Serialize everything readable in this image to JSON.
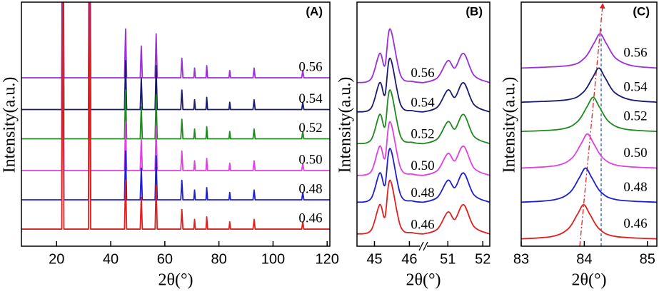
{
  "chart_data": [
    {
      "type": "line",
      "panel_label": "(A)",
      "x_label": "2θ(°)",
      "y_label": "Intensity(a.u.)",
      "xlim": [
        7,
        121
      ],
      "xticks": [
        20,
        40,
        60,
        80,
        100,
        120
      ],
      "ylim": [
        0,
        100
      ],
      "x": [
        7,
        21.9,
        22.3,
        22.7,
        31.8,
        32.2,
        32.6,
        45.1,
        45.5,
        45.9,
        50.9,
        51.3,
        51.7,
        56.4,
        56.8,
        57.2,
        65.9,
        66.3,
        66.7,
        70.7,
        71,
        71.3,
        75.2,
        75.5,
        75.8,
        83.7,
        84,
        84.3,
        92.6,
        93,
        93.4,
        110.6,
        111,
        111.4,
        121
      ],
      "series": [
        {
          "name": "0.56",
          "color": "#9b30d9",
          "values": [
            69,
            69,
            179,
            69,
            69,
            179,
            69,
            69,
            89,
            69,
            69,
            82,
            69,
            69,
            87,
            69,
            69,
            77,
            69,
            69,
            73,
            69,
            69,
            74,
            69,
            69,
            72,
            69,
            69,
            73,
            69,
            69,
            72,
            69,
            69
          ]
        },
        {
          "name": "0.54",
          "color": "#1a1a6e",
          "values": [
            56,
            56,
            166,
            56,
            56,
            166,
            56,
            56,
            76,
            56,
            56,
            69,
            56,
            56,
            74,
            56,
            56,
            64,
            56,
            56,
            60,
            56,
            56,
            61,
            56,
            56,
            59,
            56,
            56,
            60,
            56,
            56,
            59,
            56,
            56
          ]
        },
        {
          "name": "0.52",
          "color": "#1f8a1f",
          "values": [
            44,
            44,
            154,
            44,
            44,
            154,
            44,
            44,
            64,
            44,
            44,
            57,
            44,
            44,
            62,
            44,
            44,
            52,
            44,
            44,
            48,
            44,
            44,
            49,
            44,
            44,
            47,
            44,
            44,
            48,
            44,
            44,
            47,
            44,
            44
          ]
        },
        {
          "name": "0.50",
          "color": "#e040e0",
          "values": [
            31,
            31,
            141,
            31,
            31,
            141,
            31,
            31,
            51,
            31,
            31,
            44,
            31,
            31,
            49,
            31,
            31,
            39,
            31,
            31,
            35,
            31,
            31,
            36,
            31,
            31,
            34,
            31,
            31,
            35,
            31,
            31,
            34,
            31,
            31
          ]
        },
        {
          "name": "0.48",
          "color": "#1f1fd0",
          "values": [
            19,
            19,
            129,
            19,
            19,
            129,
            19,
            19,
            39,
            19,
            19,
            32,
            19,
            19,
            37,
            19,
            19,
            27,
            19,
            19,
            23,
            19,
            19,
            24,
            19,
            19,
            22,
            19,
            19,
            23,
            19,
            19,
            22,
            19,
            19
          ]
        },
        {
          "name": "0.46",
          "color": "#e02020",
          "values": [
            7,
            7,
            117,
            7,
            7,
            117,
            7,
            7,
            27,
            7,
            7,
            20,
            7,
            7,
            25,
            7,
            7,
            15,
            7,
            7,
            11,
            7,
            7,
            12,
            7,
            7,
            10,
            7,
            7,
            11,
            7,
            7,
            10,
            7,
            7
          ]
        }
      ]
    },
    {
      "type": "line",
      "panel_label": "(B)",
      "x_label": "2θ(°)",
      "y_label": "Intensity(a.u.)",
      "xlim": [
        44.5,
        52.2
      ],
      "xbreak": [
        46.4,
        50.3
      ],
      "xticks": [
        45,
        46,
        51,
        52
      ],
      "ylim": [
        0,
        100
      ],
      "x": [
        44.5,
        44.9,
        45.15,
        45.3,
        45.45,
        45.75,
        46.1,
        46.4,
        50.3,
        50.7,
        51.0,
        51.2,
        51.45,
        51.75,
        52.2
      ],
      "series": [
        {
          "name": "0.56",
          "color": "#9b30d9",
          "values": [
            67,
            68.5,
            79,
            74,
            89,
            70,
            67.5,
            67,
            67,
            69,
            76,
            73,
            79,
            70,
            67
          ]
        },
        {
          "name": "0.54",
          "color": "#1a1a6e",
          "values": [
            55,
            56.5,
            67,
            62,
            77,
            58,
            55.5,
            55,
            55,
            57,
            64,
            61,
            67,
            58,
            55
          ]
        },
        {
          "name": "0.52",
          "color": "#1f8a1f",
          "values": [
            42,
            43.5,
            54,
            49,
            64,
            45,
            42.5,
            42,
            42,
            44,
            51,
            48,
            54,
            45,
            42
          ]
        },
        {
          "name": "0.50",
          "color": "#e040e0",
          "values": [
            29,
            30.5,
            41,
            36,
            51,
            32,
            29.5,
            29,
            29,
            31,
            38,
            35,
            41,
            32,
            29
          ]
        },
        {
          "name": "0.48",
          "color": "#1f1fd0",
          "values": [
            18,
            19.5,
            30,
            25,
            40,
            21,
            18.5,
            18,
            18,
            20,
            27,
            24,
            30,
            21,
            18
          ]
        },
        {
          "name": "0.46",
          "color": "#e02020",
          "values": [
            5,
            6.5,
            17,
            12,
            27,
            8,
            5.5,
            5,
            5,
            7,
            14,
            11,
            17,
            8,
            5
          ]
        }
      ]
    },
    {
      "type": "line",
      "panel_label": "(C)",
      "x_label": "2θ(°)",
      "y_label": "Intensity(a.u.)",
      "xlim": [
        83,
        85.15
      ],
      "xticks": [
        83,
        84,
        85
      ],
      "ylim": [
        0,
        100
      ],
      "series": [
        {
          "name": "0.56",
          "color": "#9b30d9",
          "x": [
            83,
            83.75,
            84.0,
            84.15,
            84.25,
            84.35,
            84.5,
            84.75,
            85.15
          ],
          "values": [
            73,
            74,
            77,
            83,
            87,
            83,
            77,
            74,
            73
          ]
        },
        {
          "name": "0.54",
          "color": "#1a1a6e",
          "x": [
            83,
            83.73,
            83.98,
            84.13,
            84.23,
            84.33,
            84.48,
            84.73,
            85.15
          ],
          "values": [
            59,
            60,
            63,
            69,
            73,
            69,
            63,
            60,
            59
          ]
        },
        {
          "name": "0.52",
          "color": "#1f8a1f",
          "x": [
            83,
            83.64,
            83.89,
            84.04,
            84.14,
            84.24,
            84.39,
            84.64,
            85.15
          ],
          "values": [
            47,
            48,
            51,
            57,
            61,
            57,
            51,
            48,
            47
          ]
        },
        {
          "name": "0.50",
          "color": "#e040e0",
          "x": [
            83,
            83.55,
            83.8,
            83.95,
            84.05,
            84.15,
            84.3,
            84.55,
            85.15
          ],
          "values": [
            32,
            33,
            36,
            42,
            46,
            42,
            36,
            33,
            32
          ]
        },
        {
          "name": "0.48",
          "color": "#1f1fd0",
          "x": [
            83,
            83.52,
            83.77,
            83.92,
            84.02,
            84.12,
            84.27,
            84.52,
            85.15
          ],
          "values": [
            18,
            19,
            22,
            28,
            32,
            28,
            22,
            19,
            18
          ]
        },
        {
          "name": "0.46",
          "color": "#e02020",
          "x": [
            83,
            83.49,
            83.74,
            83.89,
            83.99,
            84.09,
            84.24,
            84.49,
            85.15
          ],
          "values": [
            3,
            4,
            7,
            13,
            17,
            13,
            7,
            4,
            3
          ]
        }
      ]
    }
  ]
}
